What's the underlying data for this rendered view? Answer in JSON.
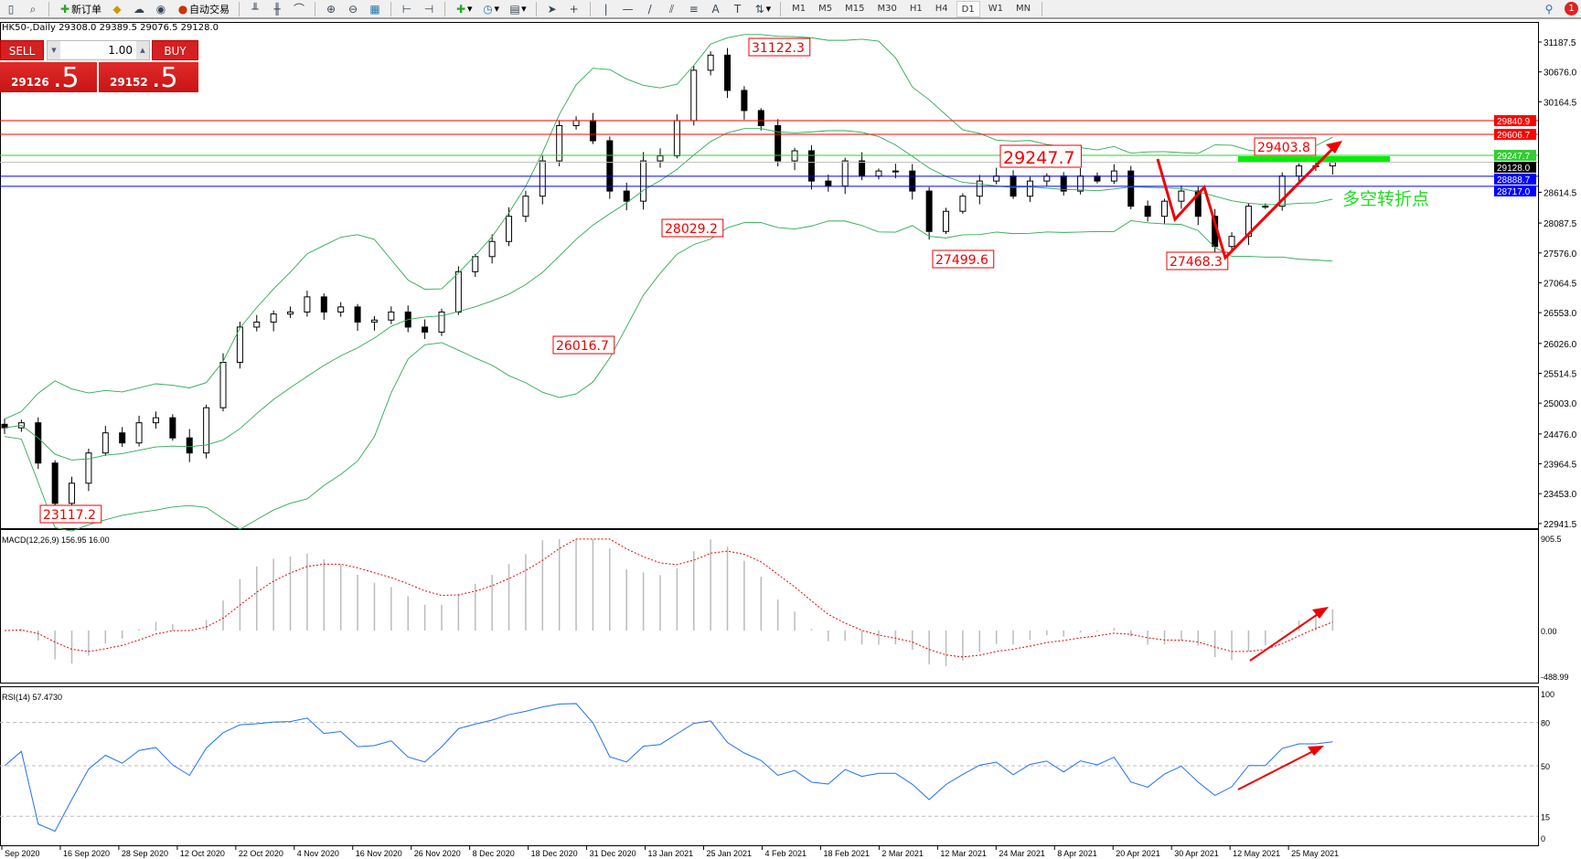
{
  "toolbar": {
    "new_order": "新订单",
    "auto_trading": "自动交易",
    "timeframes": [
      "M1",
      "M5",
      "M15",
      "M30",
      "H1",
      "H4",
      "D1",
      "W1",
      "MN"
    ],
    "active_timeframe": "D1",
    "notification_count": "1"
  },
  "chart_title": "HK50-,Daily  29308.0 29389.5 29076.5 29128.0",
  "one_click": {
    "sell": "SELL",
    "buy": "BUY",
    "lot": "1.00",
    "sell_price_main": "29126",
    "sell_price_frac": ".5",
    "buy_price_main": "29152",
    "buy_price_frac": ".5"
  },
  "price_axis": [
    "31187.5",
    "30676.0",
    "30164.5",
    "28614.5",
    "28087.5",
    "27576.0",
    "27064.5",
    "26553.0",
    "26026.0",
    "25514.5",
    "25003.0",
    "24476.0",
    "23964.5",
    "23453.0",
    "22941.5"
  ],
  "levels": [
    {
      "value": "29840.9",
      "color": "#ff0000"
    },
    {
      "value": "29606.7",
      "color": "#ff0000"
    },
    {
      "value": "29247.7",
      "color": "#33cc33"
    },
    {
      "value": "29128.0",
      "color": "#000000"
    },
    {
      "value": "28888.7",
      "color": "#0000ff"
    },
    {
      "value": "28717.0",
      "color": "#0000ff"
    }
  ],
  "annotations": {
    "high": "31122.3",
    "a1": "28029.2",
    "a2": "26016.7",
    "low": "23117.2",
    "a3": "27499.6",
    "a4": "27468.3",
    "key": "29247.7",
    "a5": "29403.8",
    "turn_text": "多空转折点"
  },
  "macd": {
    "label": "MACD(12,26,9) 156.95 16.00",
    "axis": [
      "905.5",
      "0.00",
      "-488.99"
    ]
  },
  "rsi": {
    "label": "RSI(14) 57.4730",
    "axis": [
      "100",
      "80",
      "50",
      "15",
      "0"
    ]
  },
  "dates": [
    "Sep 2020",
    "16 Sep 2020",
    "28 Sep 2020",
    "12 Oct 2020",
    "22 Oct 2020",
    "4 Nov 2020",
    "16 Nov 2020",
    "26 Nov 2020",
    "8 Dec 2020",
    "18 Dec 2020",
    "31 Dec 2020",
    "13 Jan 2021",
    "25 Jan 2021",
    "4 Feb 2021",
    "18 Feb 2021",
    "2 Mar 2021",
    "12 Mar 2021",
    "24 Mar 2021",
    "8 Apr 2021",
    "20 Apr 2021",
    "30 Apr 2021",
    "12 May 2021",
    "25 May 2021"
  ],
  "chart_data": {
    "type": "candlestick",
    "symbol": "HK50-",
    "timeframe": "Daily",
    "ylim": [
      22941.5,
      31187.5
    ],
    "close": [
      24581,
      24667,
      23977,
      23287,
      23632,
      24150,
      24494,
      24322,
      24667,
      24753,
      24408,
      24150,
      24925,
      25702,
      26306,
      26392,
      26530,
      26564,
      26823,
      26564,
      26651,
      26392,
      26426,
      26564,
      26306,
      26220,
      26564,
      27254,
      27513,
      27772,
      28203,
      28548,
      29152,
      29756,
      29843,
      29497,
      28635,
      28462,
      29152,
      29238,
      29843,
      30704,
      30963,
      30359,
      30014,
      29756,
      29152,
      29325,
      28807,
      28721,
      29152,
      28893,
      28979,
      28979,
      28635,
      27944,
      28289,
      28548,
      28807,
      28893,
      28548,
      28807,
      28893,
      28635,
      28893,
      28807,
      28979,
      28376,
      28203,
      28462,
      28635,
      28203,
      27686,
      27858,
      28376,
      28376,
      28893,
      29066,
      29066,
      29128
    ],
    "indicators": {
      "bollinger": true,
      "macd": {
        "main": 156.95,
        "signal": 16.0
      },
      "rsi": {
        "value": 57.473,
        "levels": [
          80,
          50,
          15
        ]
      }
    }
  }
}
